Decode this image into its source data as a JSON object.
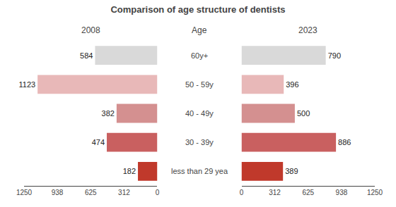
{
  "chart_data": {
    "type": "bar",
    "title": "Comparison of age structure of dentists",
    "orientation": "horizontal",
    "ylabel": "Age",
    "categories": [
      "60y+",
      "50 - 59y",
      "40 - 49y",
      "30 - 39y",
      "less than 29 yea"
    ],
    "colors": [
      "#d9d9d9",
      "#e8b8b8",
      "#d49090",
      "#c96060",
      "#c0392b"
    ],
    "series": [
      {
        "name": "2008",
        "values": [
          584,
          1123,
          382,
          474,
          182
        ]
      },
      {
        "name": "2023",
        "values": [
          790,
          396,
          500,
          886,
          389
        ]
      }
    ],
    "xlim": [
      0,
      1250
    ],
    "xticks": [
      0,
      312,
      625,
      938,
      1250
    ],
    "grid": false,
    "data_labels": true
  }
}
